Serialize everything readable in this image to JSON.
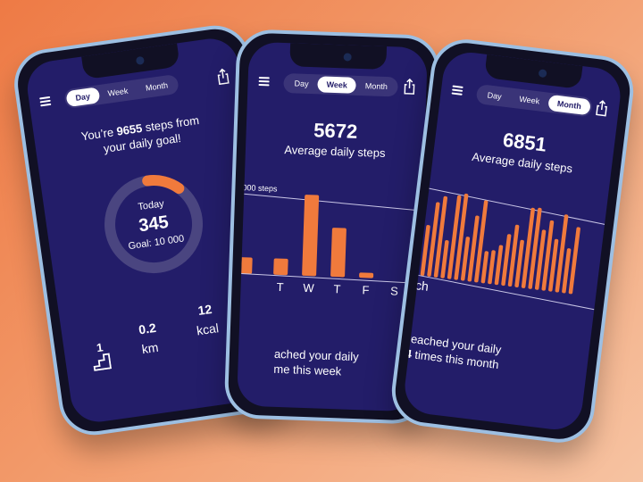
{
  "colors": {
    "accent": "#f07a3c",
    "screen": "#231d69",
    "frame": "#9dbfe2"
  },
  "tabs": [
    "Day",
    "Week",
    "Month"
  ],
  "day_screen": {
    "active_tab": "Day",
    "msg_prefix": "You’re ",
    "msg_value": "9655",
    "msg_suffix": " steps from",
    "msg_line2": "your daily goal!",
    "ring_label": "Today",
    "steps_today": "345",
    "goal_label": "Goal: 10 000",
    "progress": 0.0345,
    "stat_floors": "1",
    "stat_distance": "0.2",
    "stat_distance_unit": "km",
    "stat_energy": "12",
    "stat_energy_unit": "kcal"
  },
  "week_screen": {
    "active_tab": "Week",
    "avg": "5672",
    "avg_label": "Average daily steps",
    "goal_line_label": "000 steps",
    "footer_line1": "ached your daily",
    "footer_line2": "me this week"
  },
  "month_screen": {
    "active_tab": "Month",
    "avg": "6851",
    "avg_label": "Average daily steps",
    "axis_fragment": "ch",
    "footer_line1": "reached your daily",
    "footer_num": "4",
    "footer_line2": " times this month"
  },
  "chart_data": [
    {
      "type": "bar",
      "categories": [
        "T",
        "W",
        "T",
        "F",
        "S"
      ],
      "values": [
        2200,
        10900,
        6600,
        700,
        0
      ],
      "ylim": [
        0,
        12000
      ],
      "goal_line": 10000
    },
    {
      "type": "bar",
      "x_label": "ch",
      "values": [
        6000,
        8800,
        9600,
        4500,
        9900,
        10200,
        5200,
        7800,
        9700,
        3800,
        4000,
        4700,
        6100,
        7300,
        5600,
        9500,
        9600,
        7100,
        8300,
        6200,
        9200,
        5300,
        7900
      ]
    }
  ]
}
